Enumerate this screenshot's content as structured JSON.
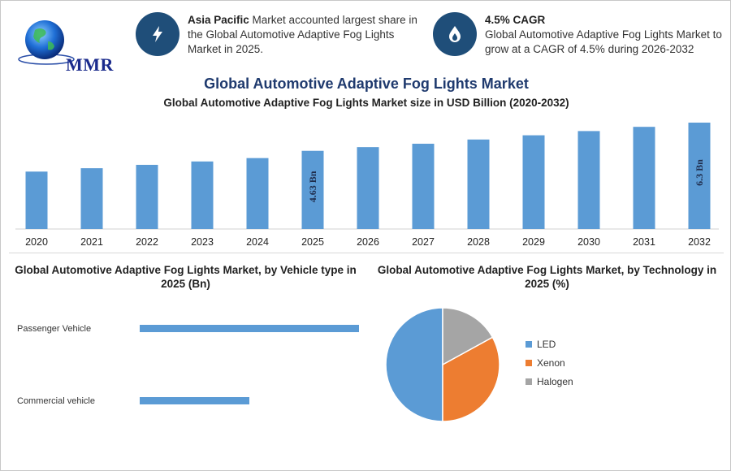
{
  "logo": {
    "text": "MMR"
  },
  "info_cards": [
    {
      "icon": "lightning-icon",
      "bold": "Asia Pacific",
      "text": " Market accounted largest share in the Global Automotive Adaptive Fog Lights Market in 2025."
    },
    {
      "icon": "fire-drop-icon",
      "bold": "4.5% CAGR",
      "text": "Global Automotive Adaptive Fog Lights Market to grow at a CAGR of 4.5% during 2026-2032"
    }
  ],
  "main_title": "Global Automotive Adaptive Fog Lights Market",
  "colors": {
    "blue": "#5b9bd5",
    "orange": "#ed7d31",
    "gray": "#a5a5a5",
    "navy": "#1f4e79",
    "title": "#1f3a6e"
  },
  "chart_data": [
    {
      "type": "bar",
      "title": "Global Automotive Adaptive Fog Lights Market size in USD Billion (2020-2032)",
      "categories": [
        "2020",
        "2021",
        "2022",
        "2023",
        "2024",
        "2025",
        "2026",
        "2027",
        "2028",
        "2029",
        "2030",
        "2031",
        "2032"
      ],
      "values": [
        3.4,
        3.6,
        3.8,
        4.0,
        4.2,
        4.63,
        4.85,
        5.05,
        5.3,
        5.55,
        5.8,
        6.05,
        6.3
      ],
      "data_labels": [
        {
          "index": 5,
          "text": "4.63 Bn"
        },
        {
          "index": 12,
          "text": "6.3 Bn"
        }
      ],
      "xlabel": "",
      "ylabel": "",
      "grid": false
    },
    {
      "type": "bar",
      "orientation": "horizontal",
      "title": "Global Automotive Adaptive Fog Lights Market, by Vehicle type in 2025 (Bn)",
      "categories": [
        "Passenger Vehicle",
        "Commercial vehicle"
      ],
      "values": [
        3.2,
        1.6
      ]
    },
    {
      "type": "pie",
      "title": "Global Automotive Adaptive Fog Lights Market, by Technology in 2025 (%)",
      "labels": [
        "LED",
        "Xenon",
        "Halogen"
      ],
      "values": [
        50,
        33,
        17
      ],
      "legend": "right"
    }
  ]
}
